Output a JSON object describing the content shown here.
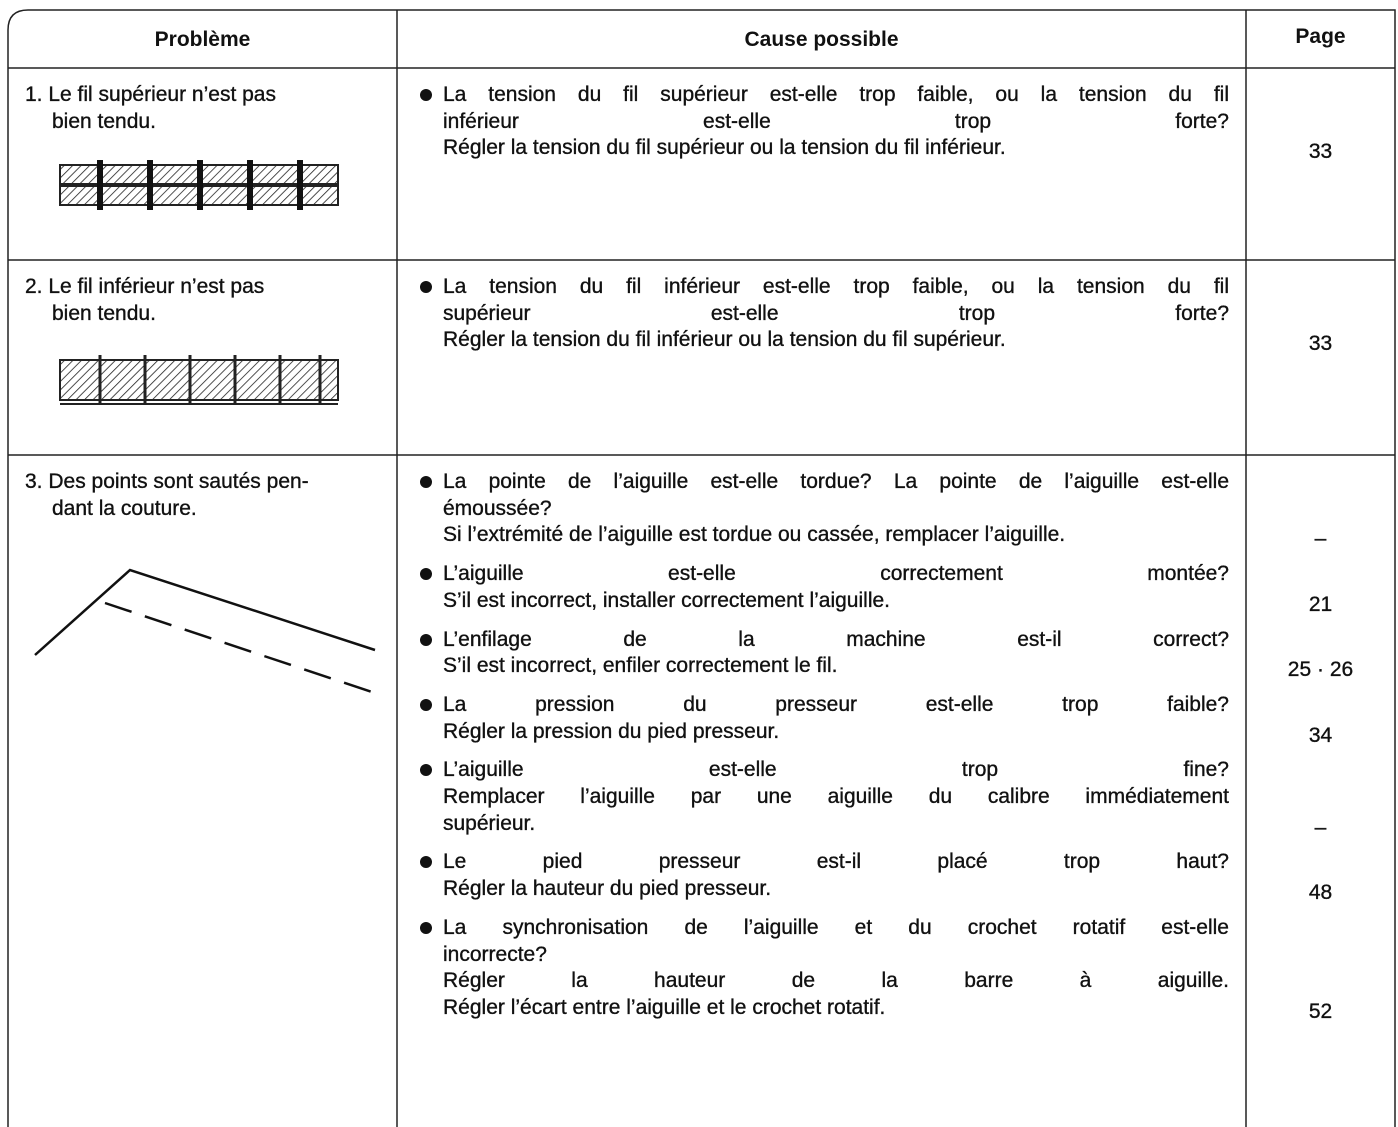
{
  "header": {
    "problem": "Problème",
    "cause": "Cause possible",
    "page": "Page"
  },
  "rows": [
    {
      "problem": [
        "1. Le fil supérieur n’est pas",
        "bien tendu."
      ],
      "causes": [
        {
          "lines": [
            "La tension du fil supérieur est-elle trop faible, ou la tension du fil",
            "inférieur est-elle trop forte?",
            "Régler la tension du fil supérieur ou la tension du fil inférieur."
          ],
          "page": "33"
        }
      ]
    },
    {
      "problem": [
        "2. Le fil inférieur n’est pas",
        "bien tendu."
      ],
      "causes": [
        {
          "lines": [
            "La tension du fil inférieur est-elle trop faible, ou la tension du fil",
            "supérieur est-elle trop forte?",
            "Régler la tension du fil inférieur ou la tension du fil supérieur."
          ],
          "page": "33"
        }
      ]
    },
    {
      "problem": [
        "3. Des points sont sautés pen-",
        "dant la couture."
      ],
      "causes": [
        {
          "lines": [
            "La pointe de l’aiguille est-elle tordue? La pointe de l’aiguille est-elle",
            "émoussée?",
            "Si l’extrémité de l’aiguille est tordue ou cassée, remplacer l’aiguille."
          ],
          "page": "–"
        },
        {
          "lines": [
            "L’aiguille est-elle correctement montée?",
            "S’il est incorrect, installer correctement l’aiguille."
          ],
          "page": "21"
        },
        {
          "lines": [
            "L’enfilage de la machine est-il correct?",
            "S’il est incorrect, enfiler correctement le fil."
          ],
          "page": "25 · 26"
        },
        {
          "lines": [
            "La pression du presseur est-elle trop faible?",
            "Régler la pression du pied presseur."
          ],
          "page": "34"
        },
        {
          "lines": [
            "L’aiguille est-elle trop fine?",
            "Remplacer l’aiguille par une aiguille du calibre immédiatement",
            "supérieur."
          ],
          "page": "–"
        },
        {
          "lines": [
            "Le pied presseur est-il placé trop haut?",
            "Régler la hauteur du pied presseur."
          ],
          "page": "48"
        },
        {
          "lines": [
            "La synchronisation de l’aiguille et du crochet rotatif est-elle",
            "incorrecte?",
            "Régler la hauteur de la barre à aiguille.",
            "Régler l’écart entre l’aiguille et le crochet rotatif."
          ],
          "page": "52"
        }
      ]
    }
  ]
}
